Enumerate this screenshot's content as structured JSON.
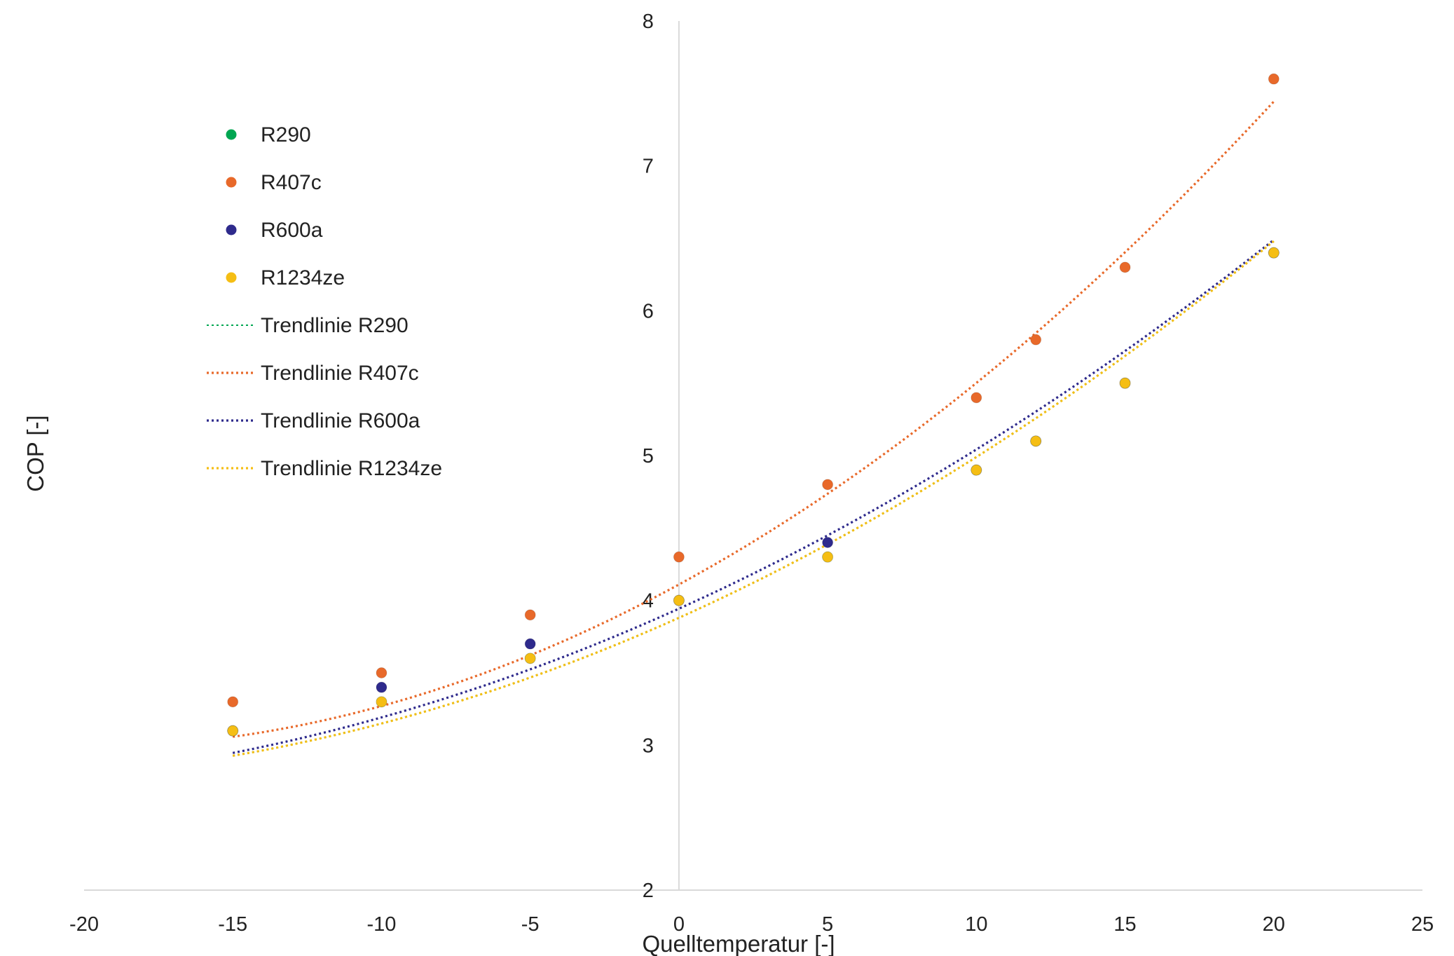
{
  "chart_data": {
    "type": "scatter",
    "xlabel": "Quelltemperatur [-]",
    "ylabel": "COP [-]",
    "xlim": [
      -20,
      25
    ],
    "ylim": [
      2,
      8
    ],
    "xticks": [
      -20,
      -15,
      -10,
      -5,
      0,
      5,
      10,
      15,
      20,
      25
    ],
    "yticks": [
      2,
      3,
      4,
      5,
      6,
      7,
      8
    ],
    "grid": false,
    "legend_position": "top-left",
    "series": [
      {
        "name": "R290",
        "color": "#00A651",
        "x": [
          -15,
          -10,
          -5,
          0,
          5,
          10,
          12,
          15,
          20
        ],
        "y": [
          3.1,
          3.3,
          3.6,
          4.0,
          4.3,
          4.9,
          5.1,
          5.5,
          6.4
        ]
      },
      {
        "name": "R407c",
        "color": "#E8692A",
        "x": [
          -15,
          -10,
          -5,
          0,
          5,
          10,
          12,
          15,
          20
        ],
        "y": [
          3.3,
          3.5,
          3.9,
          4.3,
          4.8,
          5.4,
          5.8,
          6.3,
          7.6
        ]
      },
      {
        "name": "R600a",
        "color": "#2E2A8C",
        "x": [
          -15,
          -10,
          -5,
          0,
          5,
          10,
          12,
          15,
          20
        ],
        "y": [
          3.1,
          3.4,
          3.7,
          4.0,
          4.4,
          4.9,
          5.1,
          5.5,
          6.4
        ]
      },
      {
        "name": "R1234ze",
        "color": "#F5BE14",
        "x": [
          -15,
          -10,
          -5,
          0,
          5,
          10,
          12,
          15,
          20
        ],
        "y": [
          3.1,
          3.3,
          3.6,
          4.0,
          4.3,
          4.9,
          5.1,
          5.5,
          6.4
        ]
      }
    ],
    "trendlines": [
      {
        "name": "Trendlinie R290",
        "color": "#00A651",
        "type": "polynomial",
        "coefficients": [
          3.88,
          0.092,
          0.0019
        ]
      },
      {
        "name": "Trendlinie R407c",
        "color": "#E8692A",
        "type": "polynomial",
        "coefficients": [
          4.11,
          0.1115,
          0.00276
        ]
      },
      {
        "name": "Trendlinie R600a",
        "color": "#2E2A8C",
        "type": "polynomial",
        "coefficients": [
          3.943,
          0.0925,
          0.00174
        ]
      },
      {
        "name": "Trendlinie R1234ze",
        "color": "#F5BE14",
        "type": "polynomial",
        "coefficients": [
          3.88,
          0.092,
          0.0019
        ]
      }
    ]
  }
}
